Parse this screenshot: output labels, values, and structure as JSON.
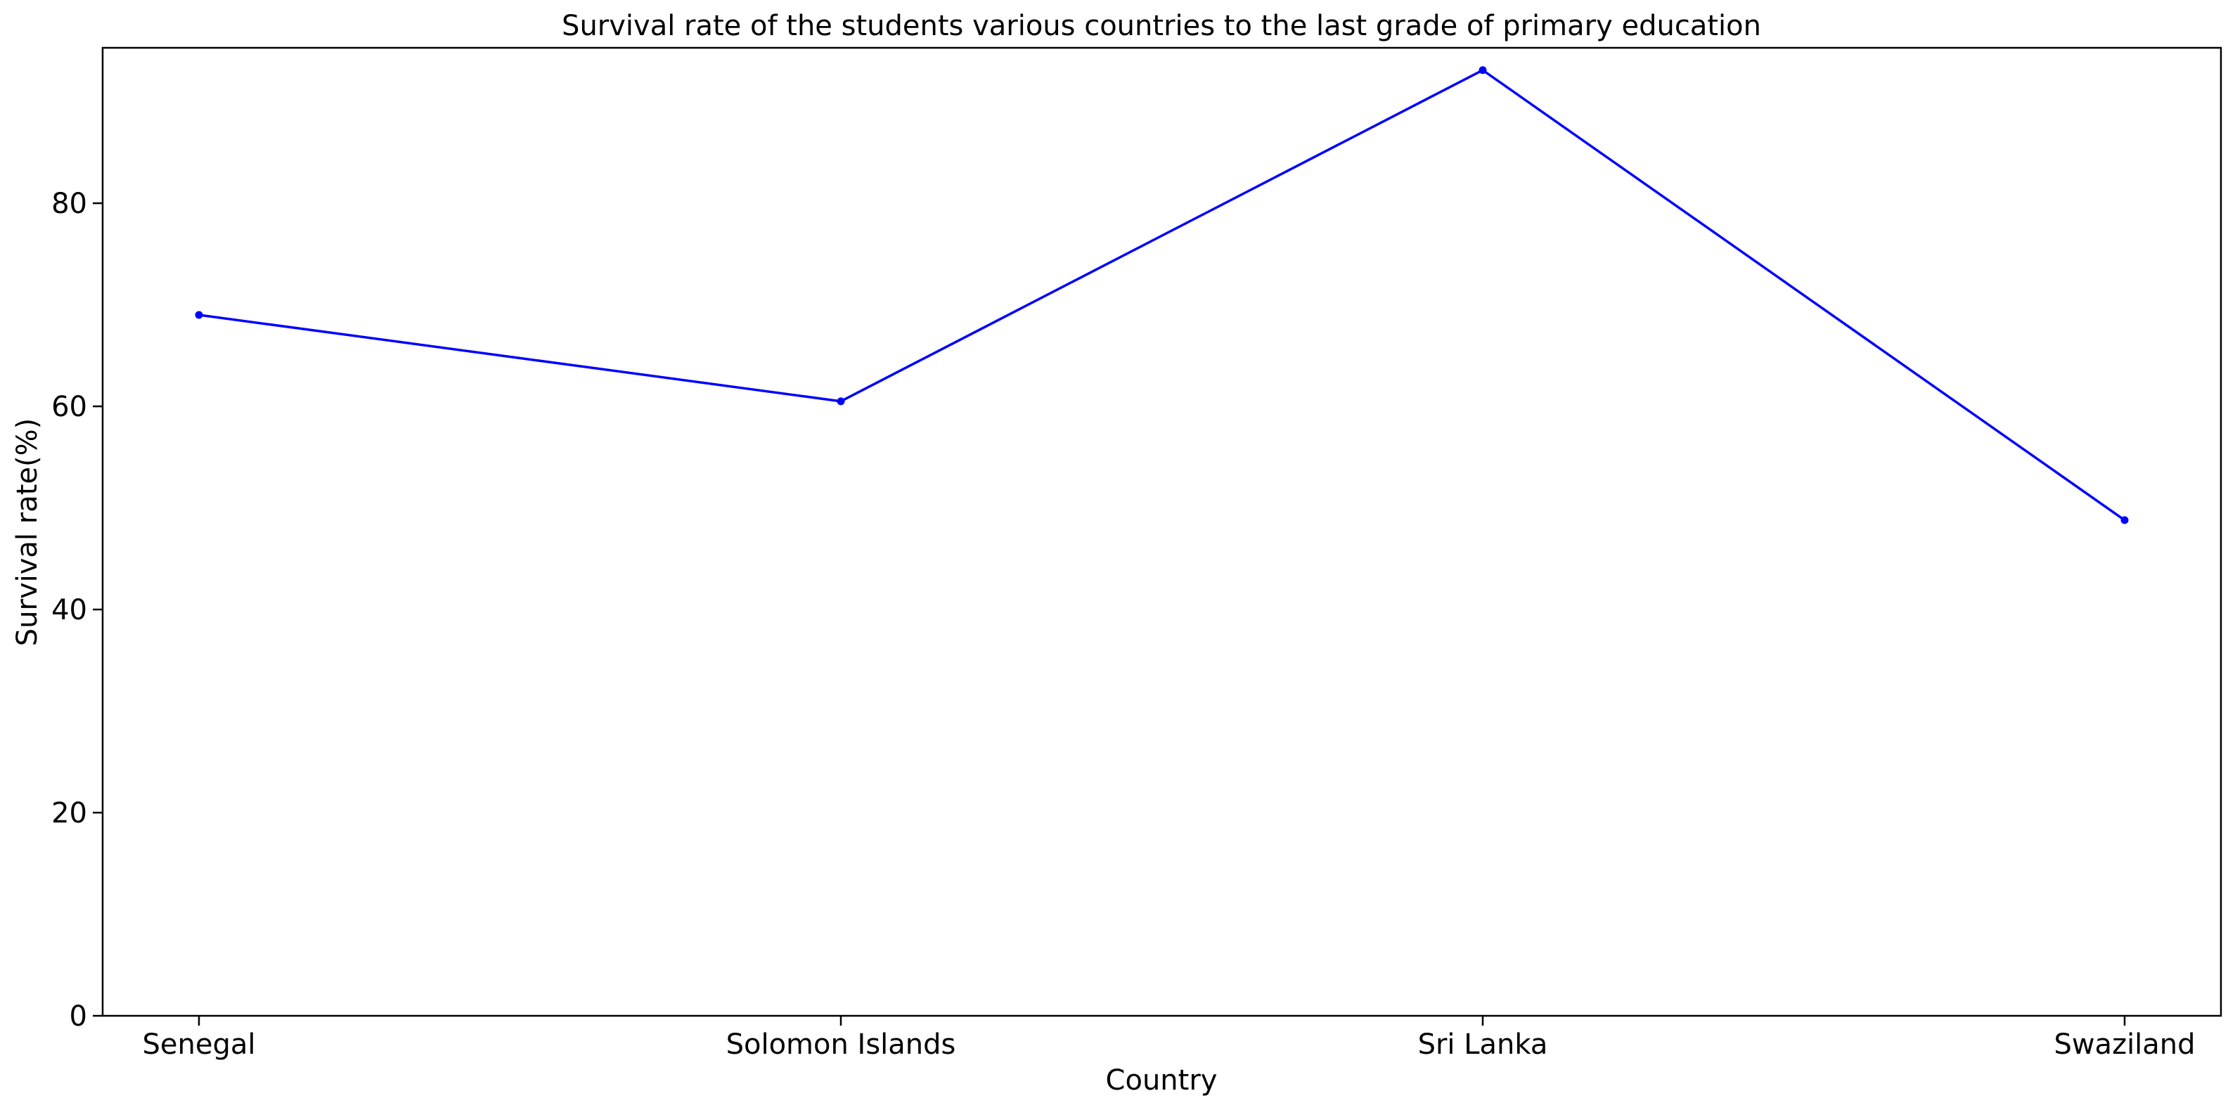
{
  "chart_data": {
    "type": "line",
    "title": "Survival rate of the students various countries to the last grade of primary education",
    "xlabel": "Country",
    "ylabel": "Survival rate(%)",
    "categories": [
      "Senegal",
      "Solomon Islands",
      "Sri Lanka",
      "Swaziland"
    ],
    "series": [
      {
        "values": [
          69.0,
          60.5,
          93.1,
          48.8
        ],
        "color": "#0000ff",
        "marker": "dot"
      }
    ],
    "ylim": [
      0,
      95.3
    ],
    "yticks": [
      0,
      20,
      40,
      60,
      80
    ],
    "grid": false,
    "legend": "none"
  }
}
